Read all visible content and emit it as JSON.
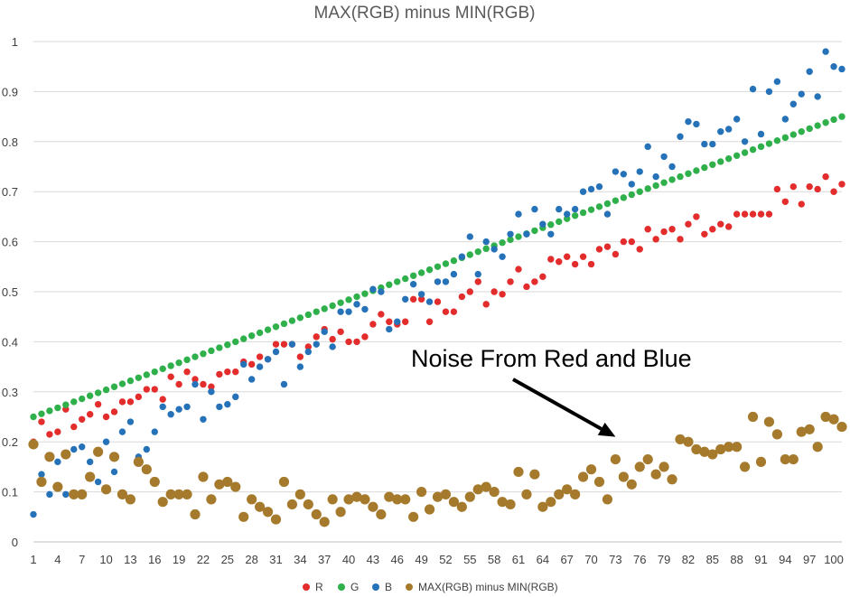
{
  "chart_data": {
    "type": "scatter",
    "title": "MAX(RGB) minus MIN(RGB)",
    "xlabel": "",
    "ylabel": "",
    "xlim": [
      1,
      101
    ],
    "ylim": [
      0,
      1
    ],
    "grid": true,
    "legend_position": "bottom",
    "y_ticks": [
      "0",
      "0.1",
      "0.2",
      "0.3",
      "0.4",
      "0.5",
      "0.6",
      "0.7",
      "0.8",
      "0.9",
      "1"
    ],
    "x_ticks": [
      "1",
      "4",
      "7",
      "10",
      "13",
      "16",
      "19",
      "22",
      "25",
      "28",
      "31",
      "34",
      "37",
      "40",
      "43",
      "46",
      "49",
      "52",
      "55",
      "58",
      "61",
      "64",
      "67",
      "70",
      "73",
      "76",
      "79",
      "82",
      "85",
      "88",
      "91",
      "94",
      "97",
      "100"
    ],
    "x": [
      1,
      2,
      3,
      4,
      5,
      6,
      7,
      8,
      9,
      10,
      11,
      12,
      13,
      14,
      15,
      16,
      17,
      18,
      19,
      20,
      21,
      22,
      23,
      24,
      25,
      26,
      27,
      28,
      29,
      30,
      31,
      32,
      33,
      34,
      35,
      36,
      37,
      38,
      39,
      40,
      41,
      42,
      43,
      44,
      45,
      46,
      47,
      48,
      49,
      50,
      51,
      52,
      53,
      54,
      55,
      56,
      57,
      58,
      59,
      60,
      61,
      62,
      63,
      64,
      65,
      66,
      67,
      68,
      69,
      70,
      71,
      72,
      73,
      74,
      75,
      76,
      77,
      78,
      79,
      80,
      81,
      82,
      83,
      84,
      85,
      86,
      87,
      88,
      89,
      90,
      91,
      92,
      93,
      94,
      95,
      96,
      97,
      98,
      99,
      100,
      101
    ],
    "series": [
      {
        "name": "R",
        "color": "#e32c2c",
        "marker_size": "small",
        "values": [
          0.2,
          0.24,
          0.215,
          0.22,
          0.265,
          0.23,
          0.245,
          0.255,
          0.275,
          0.25,
          0.26,
          0.28,
          0.28,
          0.29,
          0.305,
          0.305,
          0.285,
          0.33,
          0.315,
          0.34,
          0.325,
          0.315,
          0.31,
          0.335,
          0.34,
          0.34,
          0.36,
          0.355,
          0.37,
          0.365,
          0.395,
          0.395,
          0.395,
          0.37,
          0.39,
          0.41,
          0.425,
          0.405,
          0.42,
          0.4,
          0.4,
          0.41,
          0.435,
          0.455,
          0.44,
          0.435,
          0.44,
          0.485,
          0.485,
          0.44,
          0.48,
          0.46,
          0.46,
          0.49,
          0.5,
          0.52,
          0.475,
          0.5,
          0.495,
          0.52,
          0.545,
          0.51,
          0.52,
          0.53,
          0.565,
          0.56,
          0.57,
          0.555,
          0.57,
          0.555,
          0.585,
          0.59,
          0.575,
          0.6,
          0.6,
          0.585,
          0.625,
          0.605,
          0.62,
          0.625,
          0.605,
          0.635,
          0.65,
          0.615,
          0.625,
          0.635,
          0.63,
          0.655,
          0.655,
          0.655,
          0.655,
          0.655,
          0.705,
          0.68,
          0.71,
          0.675,
          0.71,
          0.705,
          0.73,
          0.7,
          0.715
        ]
      },
      {
        "name": "G",
        "color": "#2fb04b",
        "marker_size": "small",
        "values": [
          0.25,
          0.256,
          0.262,
          0.268,
          0.274,
          0.28,
          0.286,
          0.292,
          0.298,
          0.304,
          0.31,
          0.316,
          0.322,
          0.328,
          0.334,
          0.34,
          0.346,
          0.352,
          0.358,
          0.364,
          0.37,
          0.376,
          0.382,
          0.388,
          0.394,
          0.4,
          0.406,
          0.412,
          0.418,
          0.424,
          0.43,
          0.436,
          0.442,
          0.448,
          0.454,
          0.46,
          0.466,
          0.472,
          0.478,
          0.484,
          0.49,
          0.496,
          0.502,
          0.508,
          0.514,
          0.52,
          0.526,
          0.532,
          0.538,
          0.544,
          0.55,
          0.556,
          0.562,
          0.568,
          0.574,
          0.58,
          0.586,
          0.592,
          0.598,
          0.604,
          0.61,
          0.616,
          0.622,
          0.628,
          0.634,
          0.64,
          0.646,
          0.652,
          0.658,
          0.664,
          0.67,
          0.676,
          0.682,
          0.688,
          0.694,
          0.7,
          0.706,
          0.712,
          0.718,
          0.724,
          0.73,
          0.736,
          0.742,
          0.748,
          0.754,
          0.76,
          0.766,
          0.772,
          0.778,
          0.784,
          0.79,
          0.796,
          0.802,
          0.808,
          0.814,
          0.82,
          0.826,
          0.832,
          0.838,
          0.844,
          0.85
        ]
      },
      {
        "name": "B",
        "color": "#2672b8",
        "marker_size": "small",
        "values": [
          0.055,
          0.135,
          0.095,
          0.16,
          0.095,
          0.185,
          0.19,
          0.16,
          0.12,
          0.2,
          0.14,
          0.22,
          0.24,
          0.17,
          0.185,
          0.22,
          0.27,
          0.255,
          0.265,
          0.27,
          0.315,
          0.245,
          0.3,
          0.27,
          0.275,
          0.29,
          0.355,
          0.325,
          0.35,
          0.365,
          0.38,
          0.315,
          0.395,
          0.35,
          0.38,
          0.395,
          0.42,
          0.39,
          0.46,
          0.46,
          0.475,
          0.465,
          0.505,
          0.5,
          0.425,
          0.44,
          0.485,
          0.515,
          0.495,
          0.48,
          0.52,
          0.52,
          0.535,
          0.57,
          0.61,
          0.535,
          0.6,
          0.585,
          0.57,
          0.615,
          0.655,
          0.615,
          0.665,
          0.635,
          0.615,
          0.665,
          0.655,
          0.665,
          0.7,
          0.705,
          0.71,
          0.655,
          0.74,
          0.735,
          0.715,
          0.74,
          0.79,
          0.73,
          0.77,
          0.75,
          0.81,
          0.84,
          0.835,
          0.795,
          0.795,
          0.82,
          0.825,
          0.845,
          0.8,
          0.905,
          0.815,
          0.9,
          0.92,
          0.845,
          0.875,
          0.895,
          0.94,
          0.89,
          0.98,
          0.95,
          0.945
        ]
      },
      {
        "name": "MAX(RGB) minus MIN(RGB)",
        "color": "#a57a2c",
        "marker_size": "large",
        "values": [
          0.195,
          0.12,
          0.17,
          0.11,
          0.175,
          0.095,
          0.095,
          0.13,
          0.18,
          0.105,
          0.17,
          0.095,
          0.085,
          0.16,
          0.145,
          0.12,
          0.08,
          0.095,
          0.095,
          0.095,
          0.055,
          0.13,
          0.085,
          0.115,
          0.12,
          0.11,
          0.05,
          0.085,
          0.07,
          0.06,
          0.045,
          0.12,
          0.075,
          0.095,
          0.075,
          0.055,
          0.04,
          0.085,
          0.06,
          0.085,
          0.09,
          0.085,
          0.07,
          0.055,
          0.09,
          0.085,
          0.085,
          0.05,
          0.1,
          0.065,
          0.09,
          0.095,
          0.08,
          0.07,
          0.09,
          0.105,
          0.11,
          0.1,
          0.08,
          0.075,
          0.14,
          0.095,
          0.135,
          0.07,
          0.08,
          0.095,
          0.105,
          0.095,
          0.13,
          0.145,
          0.12,
          0.085,
          0.165,
          0.13,
          0.115,
          0.15,
          0.165,
          0.135,
          0.15,
          0.125,
          0.205,
          0.2,
          0.185,
          0.18,
          0.175,
          0.185,
          0.19,
          0.19,
          0.15,
          0.25,
          0.16,
          0.24,
          0.215,
          0.165,
          0.165,
          0.22,
          0.225,
          0.19,
          0.25,
          0.245,
          0.23
        ]
      }
    ],
    "annotations": [
      {
        "text": "Noise From Red and Blue",
        "arrow_to": {
          "x": 73,
          "y": 0.21
        }
      }
    ]
  }
}
